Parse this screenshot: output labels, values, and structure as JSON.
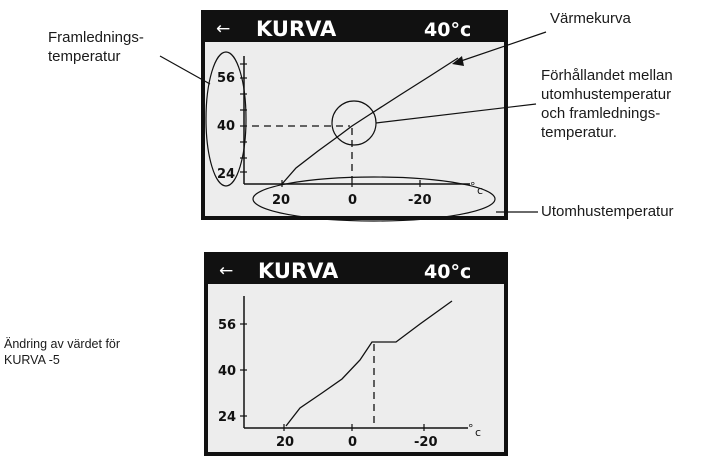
{
  "top_screen": {
    "back_icon": "←",
    "title": "KURVA",
    "temperature": "40°c",
    "y_ticks": [
      "56",
      "40",
      "24"
    ],
    "x_ticks": [
      "20",
      "0",
      "-20"
    ],
    "unit_degree": "°",
    "unit_c": "c"
  },
  "bottom_screen": {
    "back_icon": "←",
    "title": "KURVA",
    "temperature": "40°c",
    "y_ticks": [
      "56",
      "40",
      "24"
    ],
    "x_ticks": [
      "20",
      "0",
      "-20"
    ],
    "unit_degree": "°",
    "unit_c": "c"
  },
  "callouts": {
    "framlednings_line1": "Framlednings-",
    "framlednings_line2": "temperatur",
    "varmekurva": "Värmekurva",
    "forhallandet_line1": "Förhållandet mellan",
    "forhallandet_line2": "utomhustemperatur",
    "forhallandet_line3": "och framlednings-",
    "forhallandet_line4": "temperatur.",
    "utomhus": "Utomhustemperatur",
    "andring_line1": "Ändring av värdet för",
    "andring_line2": "KURVA -5"
  }
}
